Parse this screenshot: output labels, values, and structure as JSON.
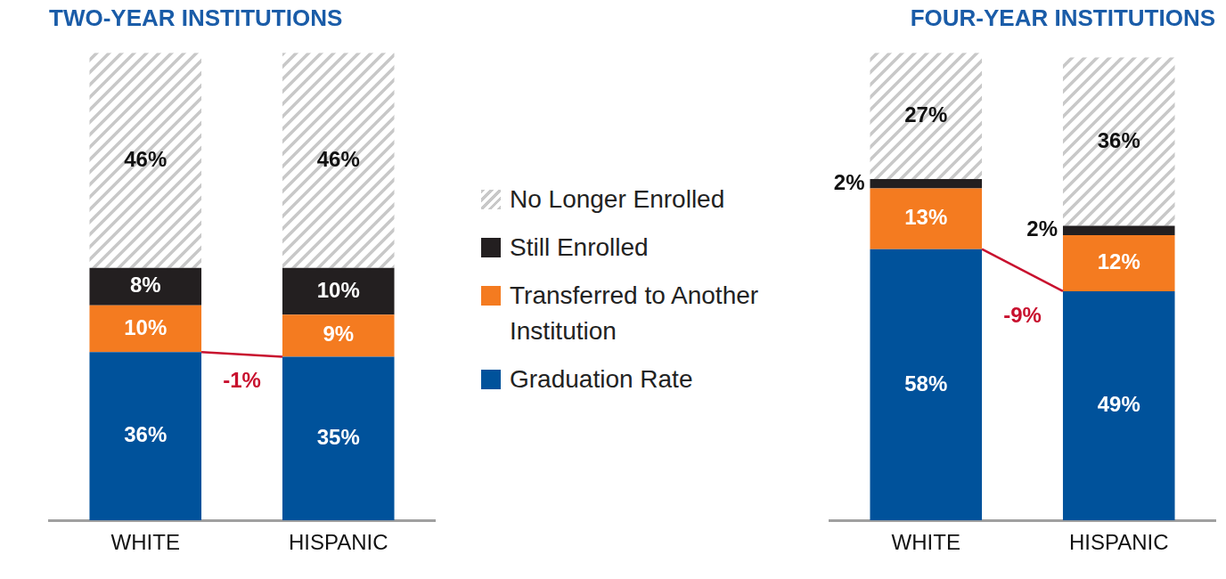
{
  "chart_data": [
    {
      "type": "bar",
      "title": "TWO-YEAR INSTITUTIONS",
      "categories": [
        "WHITE",
        "HISPANIC"
      ],
      "stacked": true,
      "data_labels": true,
      "tick_labels": "x",
      "legend": "right",
      "ylim": [
        0,
        100
      ],
      "annotation": "-1%",
      "series": [
        {
          "name": "Graduation Rate",
          "color": "#00529b",
          "values": [
            36,
            35
          ],
          "value_labels": [
            "36%",
            "35%"
          ]
        },
        {
          "name": "Transferred to Another Institution",
          "color": "#f47b20",
          "values": [
            10,
            9
          ],
          "value_labels": [
            "10%",
            "9%"
          ]
        },
        {
          "name": "Still Enrolled",
          "color": "#231f20",
          "values": [
            8,
            10
          ],
          "value_labels": [
            "8%",
            "10%"
          ]
        },
        {
          "name": "No Longer Enrolled",
          "color": "#c8c8c8",
          "values": [
            46,
            46
          ],
          "value_labels": [
            "46%",
            "46%"
          ]
        }
      ]
    },
    {
      "type": "bar",
      "title": "FOUR-YEAR INSTITUTIONS",
      "categories": [
        "WHITE",
        "HISPANIC"
      ],
      "stacked": true,
      "data_labels": true,
      "tick_labels": "x",
      "ylim": [
        0,
        100
      ],
      "annotation": "-9%",
      "series": [
        {
          "name": "Graduation Rate",
          "color": "#00529b",
          "values": [
            58,
            49
          ],
          "value_labels": [
            "58%",
            "49%"
          ]
        },
        {
          "name": "Transferred to Another Institution",
          "color": "#f47b20",
          "values": [
            13,
            12
          ],
          "value_labels": [
            "13%",
            "12%"
          ]
        },
        {
          "name": "Still Enrolled",
          "color": "#231f20",
          "values": [
            2,
            2
          ],
          "value_labels": [
            "2%",
            "2%"
          ]
        },
        {
          "name": "No Longer Enrolled",
          "color": "#c8c8c8",
          "values": [
            27,
            36
          ],
          "value_labels": [
            "27%",
            "36%"
          ]
        }
      ]
    }
  ]
}
